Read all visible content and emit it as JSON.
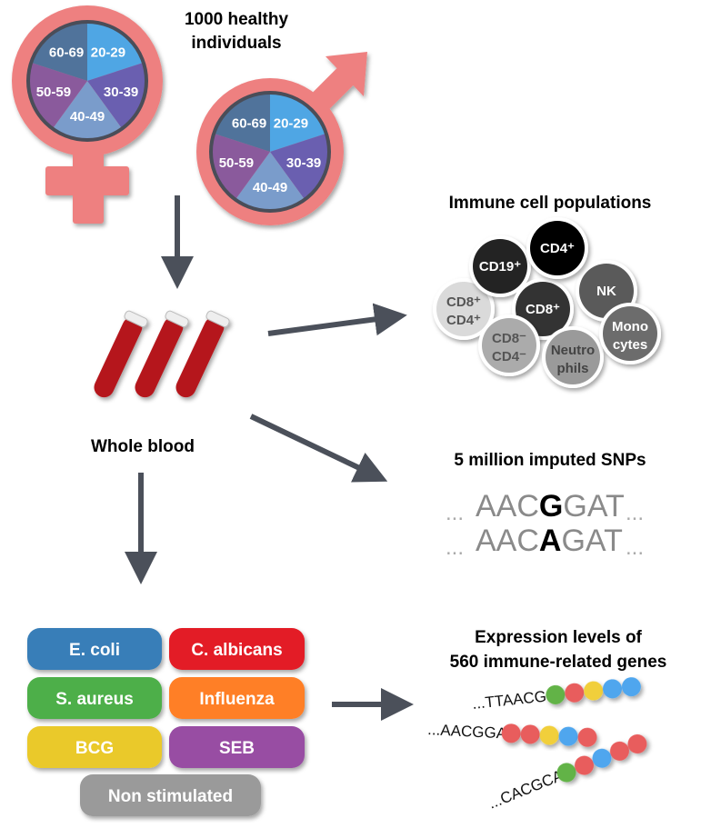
{
  "cohort": {
    "title_line1": "1000 healthy",
    "title_line2": "individuals",
    "age_groups": [
      "20-29",
      "30-39",
      "40-49",
      "50-59",
      "60-69"
    ],
    "age_colors": [
      "#4fa6e4",
      "#6a5fb0",
      "#7a9ccb",
      "#8a5a9c",
      "#50739b"
    ],
    "symbol_color": "#ee8080"
  },
  "blood": {
    "label": "Whole blood",
    "tube_color": "#b5161b"
  },
  "arrow_color": "#4b505a",
  "immune_cells": {
    "title": "Immune cell populations",
    "cells": [
      {
        "line1": "CD8⁺",
        "line2": "CD4⁺",
        "fill": "#dadada",
        "text": "#555555"
      },
      {
        "line1": "CD19⁺",
        "line2": "",
        "fill": "#232323",
        "text": "#ffffff"
      },
      {
        "line1": "NK",
        "line2": "",
        "fill": "#5a5a5a",
        "text": "#ffffff"
      },
      {
        "line1": "CD8⁺",
        "line2": "",
        "fill": "#333333",
        "text": "#ffffff"
      },
      {
        "line1": "CD4⁺",
        "line2": "",
        "fill": "#000000",
        "text": "#ffffff"
      },
      {
        "line1": "CD8⁻",
        "line2": "CD4⁻",
        "fill": "#ababab",
        "text": "#555555"
      },
      {
        "line1": "Neutro",
        "line2": "phils",
        "fill": "#9a9a9a",
        "text": "#444444"
      },
      {
        "line1": "Mono",
        "line2": "cytes",
        "fill": "#6c6c6c",
        "text": "#ffffff"
      }
    ]
  },
  "snps": {
    "title": "5 million imputed SNPs",
    "seq1": {
      "pre": "AAC",
      "snp": "G",
      "post": "GAT"
    },
    "seq2": {
      "pre": "AAC",
      "snp": "A",
      "post": "GAT"
    },
    "ellipsis": "..."
  },
  "stimulations": [
    {
      "label": "E. coli",
      "color": "#377eb8"
    },
    {
      "label": "C. albicans",
      "color": "#e31f26"
    },
    {
      "label": "S. aureus",
      "color": "#4daf4a"
    },
    {
      "label": "Influenza",
      "color": "#ff7f27"
    },
    {
      "label": "BCG",
      "color": "#eac92b"
    },
    {
      "label": "SEB",
      "color": "#984ea3"
    },
    {
      "label": "Non stimulated",
      "color": "#9a9a9a"
    }
  ],
  "expression": {
    "title_line1": "Expression levels of",
    "title_line2": "560 immune-related genes",
    "strands": [
      {
        "seq": "...TTAACGG",
        "beads": [
          "#62b346",
          "#e85d5d",
          "#f1cf3b",
          "#4fa6ee",
          "#4fa6ee"
        ]
      },
      {
        "seq": "...AACGGAT",
        "beads": [
          "#e85d5d",
          "#e85d5d",
          "#f1cf3b",
          "#4fa6ee",
          "#e85d5d"
        ]
      },
      {
        "seq": "...CACGCAA",
        "beads": [
          "#62b346",
          "#e85d5d",
          "#4fa6ee",
          "#e85d5d",
          "#e85d5d"
        ]
      }
    ]
  }
}
